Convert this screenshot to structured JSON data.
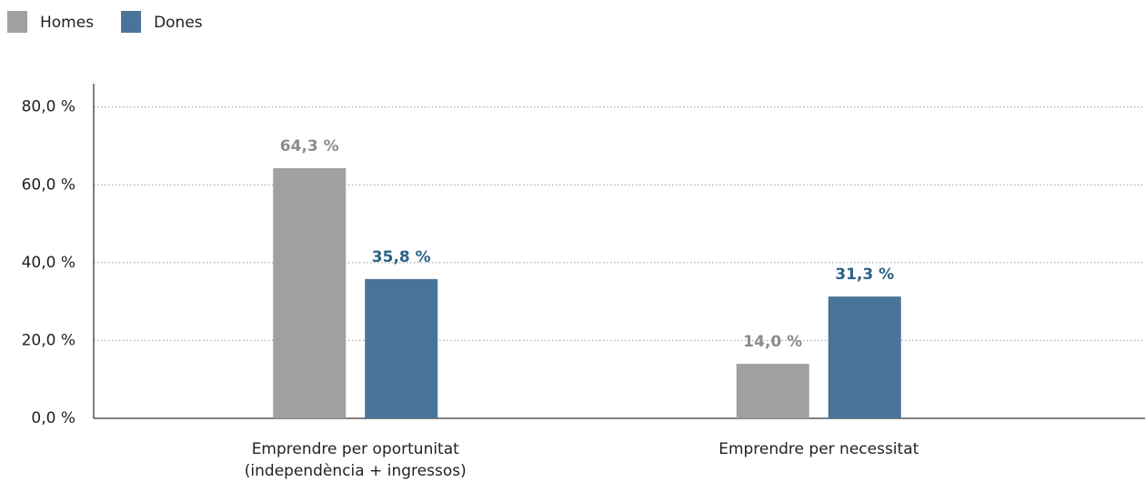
{
  "chart_data": {
    "type": "bar",
    "categories": [
      "Emprendre per oportunitat\n(independència + ingressos)",
      "Emprendre per necessitat"
    ],
    "series": [
      {
        "name": "Homes",
        "color": "#a0a09f",
        "label_color": "#8c8c8c",
        "values": [
          64.3,
          14.0
        ],
        "value_labels": [
          "64,3 %",
          "14,0 %"
        ]
      },
      {
        "name": "Dones",
        "color": "#4a7399",
        "label_color": "#2a6385",
        "values": [
          35.8,
          31.3
        ],
        "value_labels": [
          "35,8 %",
          "31,3 %"
        ]
      }
    ],
    "ylim": [
      0,
      86
    ],
    "yticks": [
      {
        "value": 0,
        "label": "0,0 %"
      },
      {
        "value": 20,
        "label": "20,0 %"
      },
      {
        "value": 40,
        "label": "40,0 %"
      },
      {
        "value": 60,
        "label": "60,0 %"
      },
      {
        "value": 80,
        "label": "80,0 %"
      }
    ],
    "grid": true,
    "legend": "top-left"
  }
}
